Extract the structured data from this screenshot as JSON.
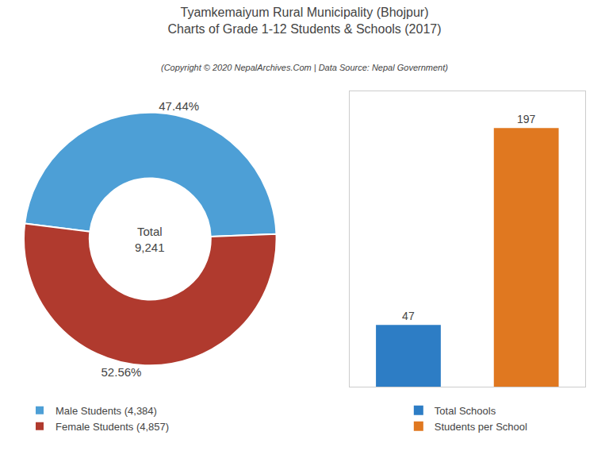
{
  "title": "Tyamkemaiyum Rural Municipality (Bhojpur)",
  "subtitle": "Charts of Grade 1-12 Students & Schools (2017)",
  "annotations": [
    "(Copyright © 2020 NepalArchives.Com | Data Source: Nepal Government)"
  ],
  "chart_data": [
    {
      "type": "pie",
      "categories": [
        "Male Students (4,384)",
        "Female Students (4,857)"
      ],
      "values": [
        47.44,
        52.56
      ],
      "value_labels": [
        "47.44%",
        "52.56%"
      ],
      "colors": [
        "#4d9fd6",
        "#b03a2e"
      ],
      "annotations": [
        "Total",
        "9,241"
      ],
      "data_labels": true,
      "legend": "lower left"
    },
    {
      "type": "bar",
      "categories": [
        null,
        null
      ],
      "series": [
        {
          "name": "Total Schools",
          "color": "#2d7dc5",
          "values": [
            47,
            null
          ]
        },
        {
          "name": "Students per School",
          "color": "#e07820",
          "values": [
            null,
            197
          ]
        }
      ],
      "ylim": [
        0,
        225
      ],
      "grid": false,
      "tick_labels": false,
      "data_labels": true,
      "legend": "bottom"
    }
  ]
}
